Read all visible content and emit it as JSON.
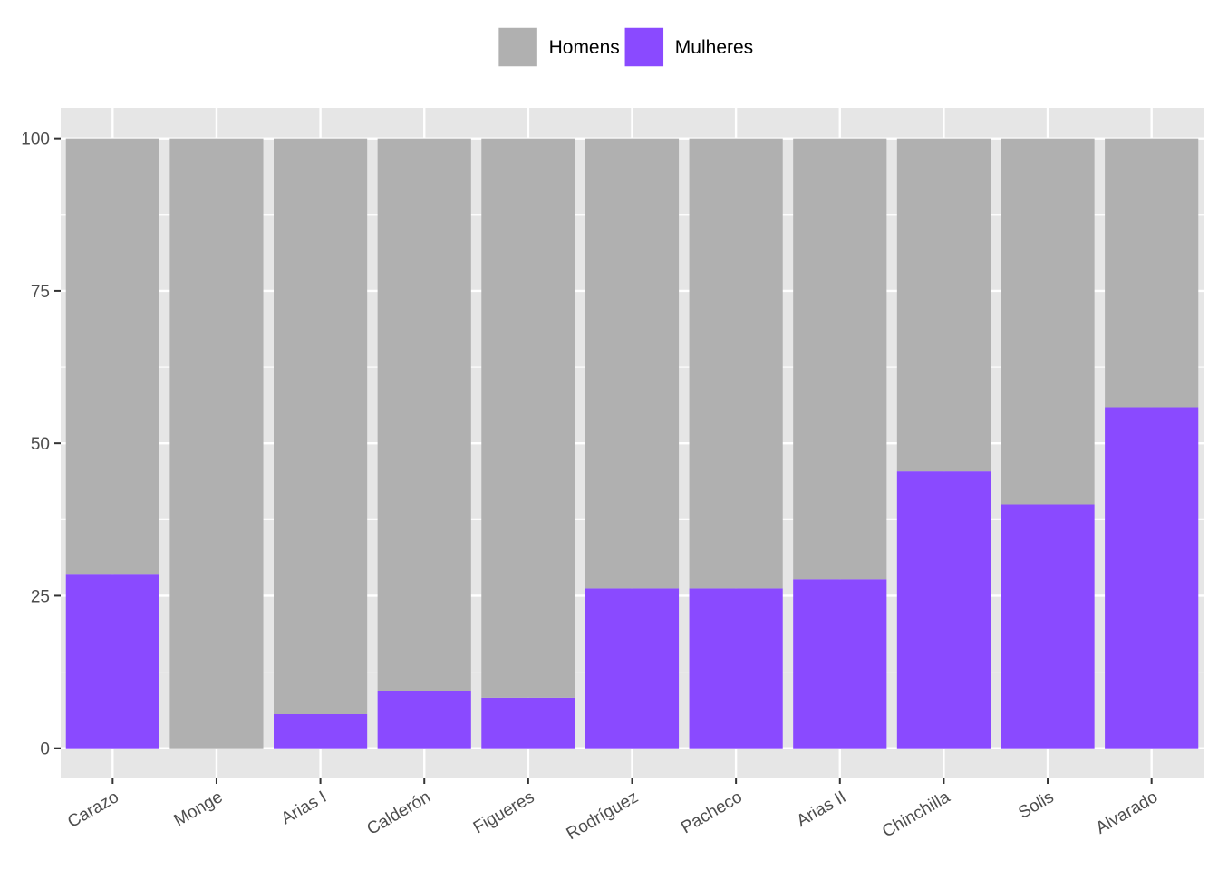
{
  "chart_data": {
    "type": "bar",
    "stacked": true,
    "percent": true,
    "categories": [
      "Carazo",
      "Monge",
      "Arias I",
      "Calderón",
      "Figueres",
      "Rodríguez",
      "Pacheco",
      "Arias II",
      "Chinchilla",
      "Solis",
      "Alvarado"
    ],
    "series": [
      {
        "name": "Homens",
        "color": "#b0b0b0",
        "values": [
          71.4,
          100,
          94.4,
          90.6,
          91.7,
          73.8,
          73.8,
          72.3,
          54.6,
          60.0,
          44.1
        ]
      },
      {
        "name": "Mulheres",
        "color": "#8a4aff",
        "values": [
          28.6,
          0,
          5.6,
          9.4,
          8.3,
          26.2,
          26.2,
          27.7,
          45.4,
          40.0,
          55.9
        ]
      }
    ],
    "ylim": [
      -4.8,
      105
    ],
    "yticks": [
      0,
      25,
      50,
      75,
      100
    ],
    "ytick_labels": [
      "0",
      "25",
      "50",
      "75",
      "100"
    ],
    "xlabel": "",
    "ylabel": "",
    "title": "",
    "grid": true,
    "legend_position": "top",
    "panel_color": "#e6e6e6",
    "grid_color": "#ffffff"
  }
}
